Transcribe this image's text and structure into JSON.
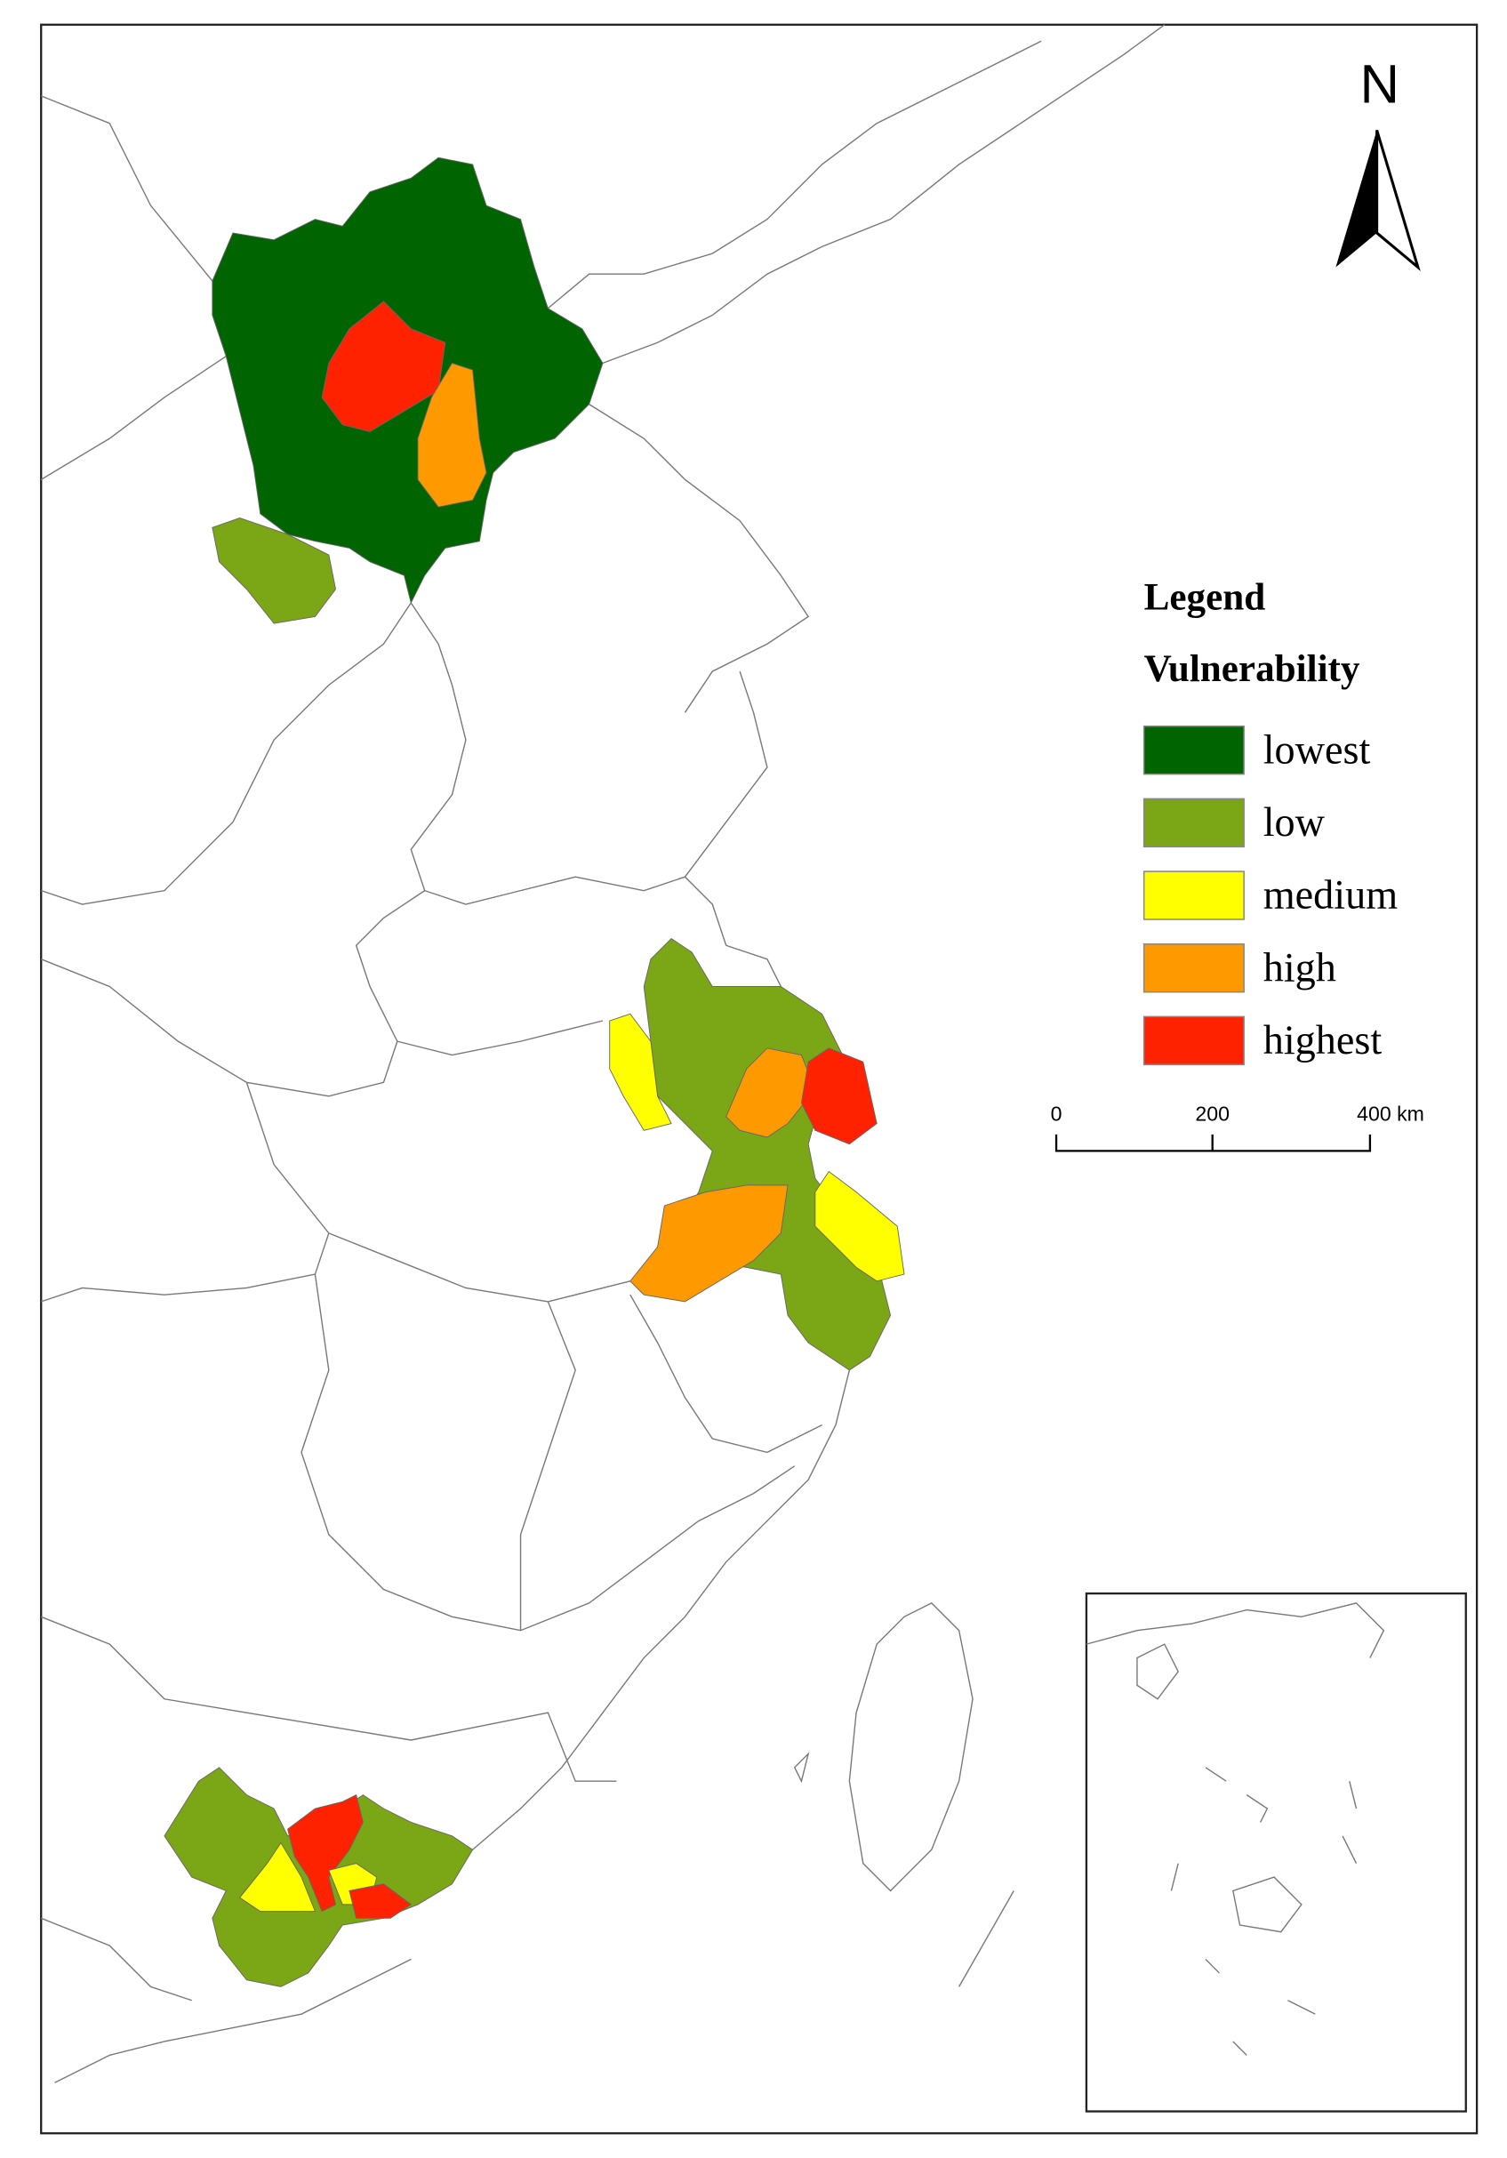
{
  "north_arrow": {
    "label": "N"
  },
  "legend": {
    "title": "Legend",
    "subtitle": "Vulnerability",
    "items": [
      {
        "label": "lowest",
        "color": "#006400"
      },
      {
        "label": "low",
        "color": "#7ba615"
      },
      {
        "label": "medium",
        "color": "#ffff00"
      },
      {
        "label": "high",
        "color": "#ff9900"
      },
      {
        "label": "highest",
        "color": "#ff2200"
      }
    ]
  },
  "scale_bar": {
    "labels": [
      "0",
      "200",
      "400 km"
    ]
  }
}
